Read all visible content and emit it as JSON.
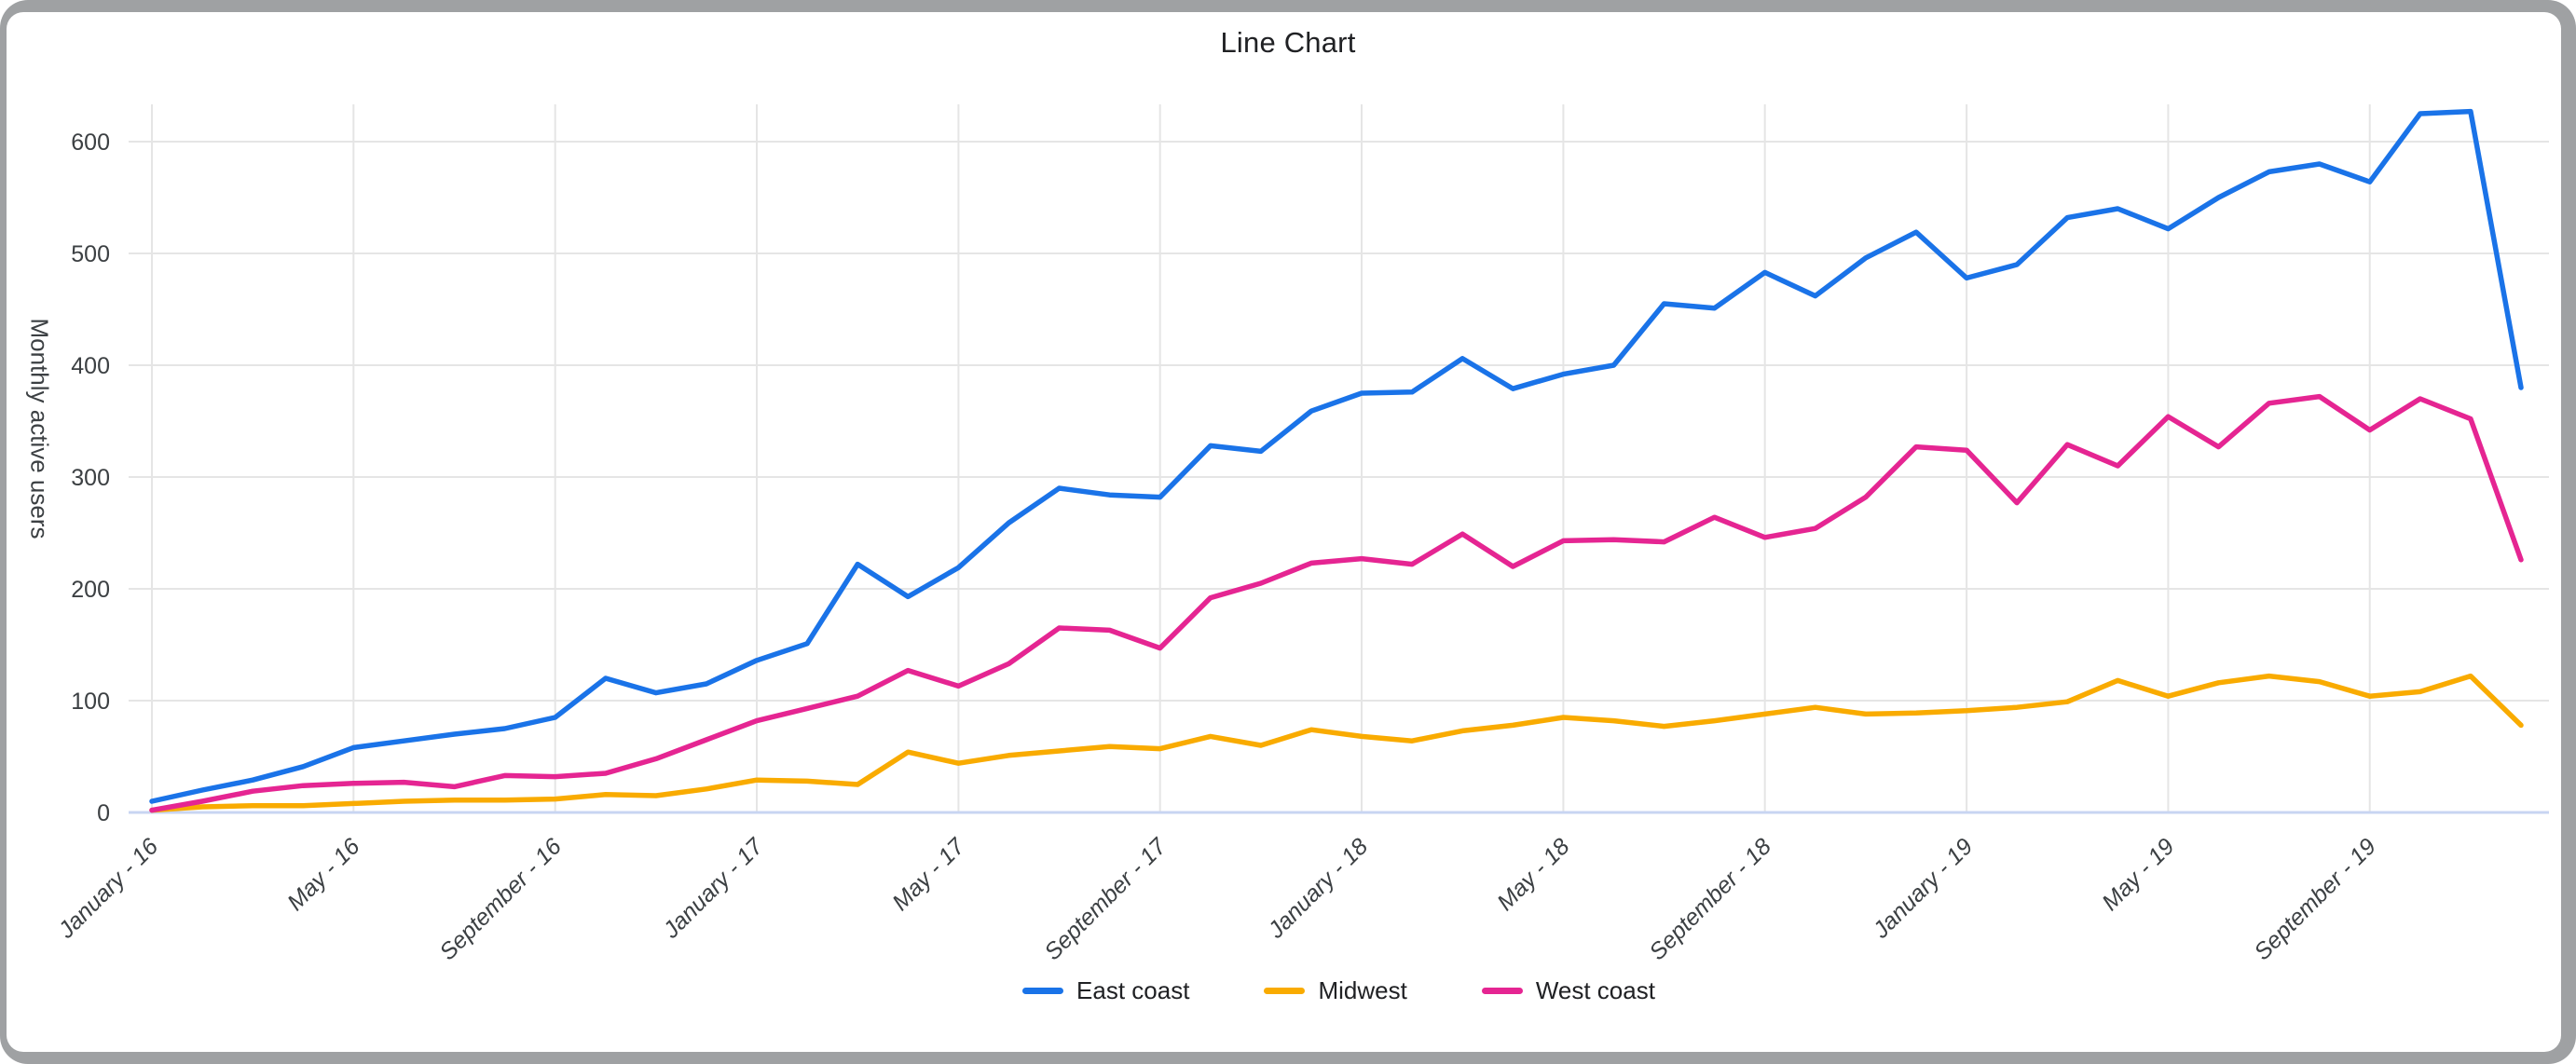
{
  "window": {
    "frame_color": "#9fa1a3",
    "card_color": "#ffffff"
  },
  "style": {
    "grid_color": "#e5e5e5",
    "baseline_color": "#c8d5f2",
    "tick_color": "#3c4043",
    "title_color": "#202124",
    "axis_title_color": "#3c4043",
    "line_width": 5.5
  },
  "chart_data": {
    "type": "line",
    "title": "Line Chart",
    "xlabel": "",
    "ylabel": "Monthly active users",
    "grid": true,
    "legend_position": "bottom",
    "markers": false,
    "ylim": [
      0,
      650
    ],
    "y_ticks": [
      0,
      100,
      200,
      300,
      400,
      500,
      600
    ],
    "x_tick_indices": [
      0,
      4,
      8,
      12,
      16,
      20,
      24,
      28,
      32,
      36,
      40,
      44
    ],
    "x_tick_labels": [
      "January - 16",
      "May - 16",
      "September - 16",
      "January - 17",
      "May - 17",
      "September - 17",
      "January - 18",
      "May - 18",
      "September - 18",
      "January - 19",
      "May - 19",
      "September - 19"
    ],
    "x_points": 48,
    "series": [
      {
        "name": "East coast",
        "color": "#1a73e8",
        "values": [
          10,
          20,
          29,
          41,
          58,
          64,
          70,
          75,
          85,
          120,
          107,
          115,
          136,
          151,
          222,
          193,
          219,
          259,
          290,
          284,
          282,
          328,
          323,
          359,
          375,
          376,
          406,
          379,
          392,
          400,
          455,
          451,
          483,
          462,
          496,
          519,
          478,
          490,
          532,
          540,
          522,
          550,
          573,
          580,
          564,
          625,
          627,
          380
        ]
      },
      {
        "name": "Midwest",
        "color": "#f9ab00",
        "values": [
          2,
          5,
          6,
          6,
          8,
          10,
          11,
          11,
          12,
          16,
          15,
          21,
          29,
          28,
          25,
          54,
          44,
          51,
          55,
          59,
          57,
          68,
          60,
          74,
          68,
          64,
          73,
          78,
          85,
          82,
          77,
          82,
          88,
          94,
          88,
          89,
          91,
          94,
          99,
          118,
          104,
          116,
          122,
          117,
          104,
          108,
          122,
          78
        ]
      },
      {
        "name": "West coast",
        "color": "#e52592",
        "values": [
          2,
          10,
          19,
          24,
          26,
          27,
          23,
          33,
          32,
          35,
          48,
          65,
          82,
          93,
          104,
          127,
          113,
          133,
          165,
          163,
          147,
          192,
          205,
          223,
          227,
          222,
          249,
          220,
          243,
          244,
          242,
          264,
          246,
          254,
          282,
          327,
          324,
          277,
          329,
          310,
          354,
          327,
          366,
          372,
          342,
          370,
          352,
          226
        ]
      }
    ]
  }
}
